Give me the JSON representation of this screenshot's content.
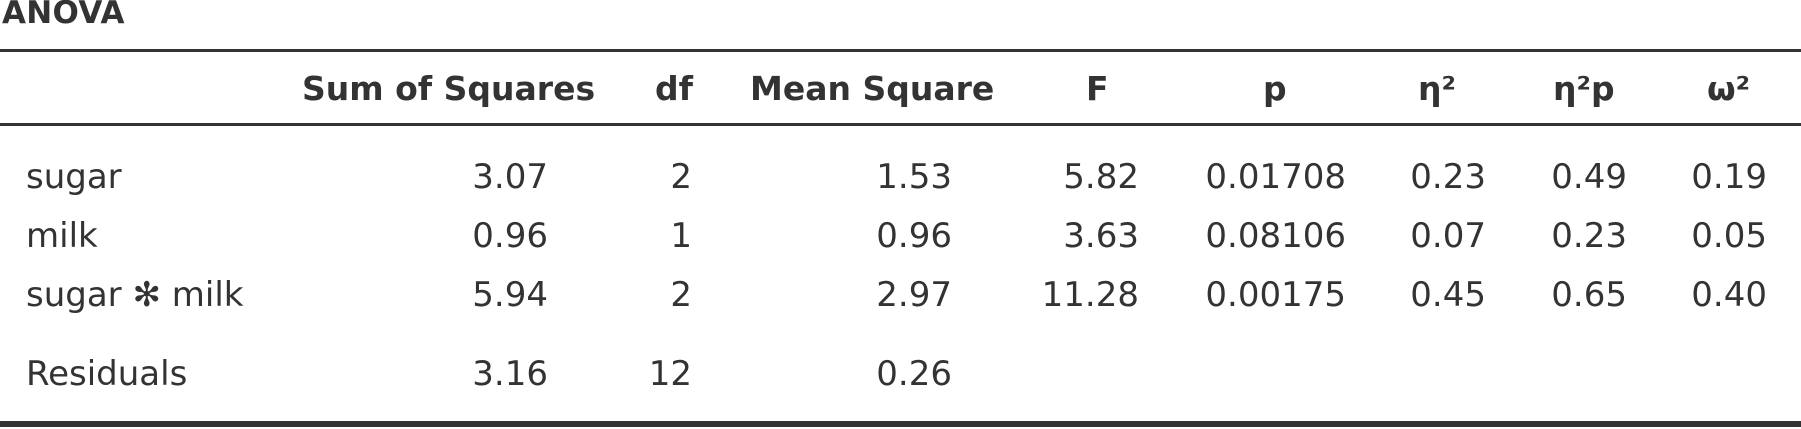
{
  "title": "ANOVA",
  "columns": {
    "term": "",
    "sum_of_squares": "Sum of Squares",
    "df": "df",
    "mean_square": "Mean Square",
    "F": "F",
    "p": "p",
    "eta2": "η²",
    "eta2p": "η²p",
    "omega2": "ω²"
  },
  "rows": [
    {
      "term": "sugar",
      "ss": "3.07",
      "df": "2",
      "ms": "1.53",
      "F": "5.82",
      "p": "0.01708",
      "eta2": "0.23",
      "eta2p": "0.49",
      "omega2": "0.19"
    },
    {
      "term": "milk",
      "ss": "0.96",
      "df": "1",
      "ms": "0.96",
      "F": "3.63",
      "p": "0.08106",
      "eta2": "0.07",
      "eta2p": "0.23",
      "omega2": "0.05"
    },
    {
      "term": "sugar ✻ milk",
      "ss": "5.94",
      "df": "2",
      "ms": "2.97",
      "F": "11.28",
      "p": "0.00175",
      "eta2": "0.45",
      "eta2p": "0.65",
      "omega2": "0.40"
    },
    {
      "term": "Residuals",
      "ss": "3.16",
      "df": "12",
      "ms": "0.26",
      "F": "",
      "p": "",
      "eta2": "",
      "eta2p": "",
      "omega2": ""
    }
  ]
}
